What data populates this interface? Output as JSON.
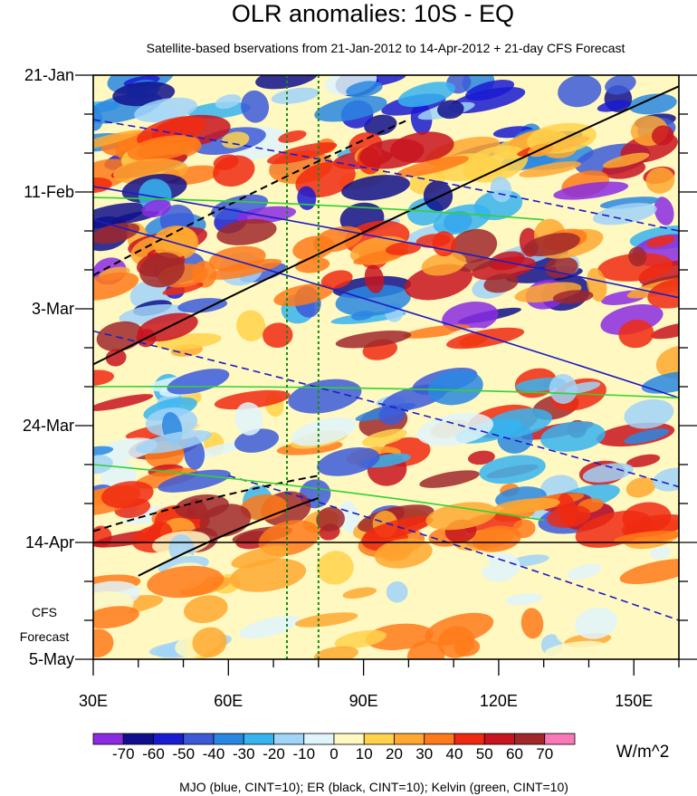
{
  "chart_data": {
    "type": "heatmap",
    "title": "OLR anomalies: 10S - EQ",
    "subtitle": "Satellite-based bservations from 21-Jan-2012 to 14-Apr-2012 + 21-day CFS Forecast",
    "xlabel": "",
    "ylabel": "",
    "x_ticks": [
      "30E",
      "60E",
      "90E",
      "120E",
      "150E"
    ],
    "x_tick_values": [
      30,
      60,
      90,
      120,
      150
    ],
    "xlim": [
      30,
      160
    ],
    "y_ticks": [
      "21-Jan",
      "11-Feb",
      "3-Mar",
      "24-Mar",
      "14-Apr",
      "5-May"
    ],
    "y_tick_days": [
      0,
      21,
      42,
      63,
      84,
      105
    ],
    "ylim_days": [
      0,
      105
    ],
    "forecast_start": "14-Apr",
    "forecast_start_day": 84,
    "forecast_label": [
      "CFS",
      "Forecast"
    ],
    "dotted_lines_lon": [
      73,
      80
    ],
    "colorbar": {
      "labels": [
        "-70",
        "-60",
        "-50",
        "-40",
        "-30",
        "-20",
        "-10",
        "0",
        "10",
        "20",
        "30",
        "40",
        "50",
        "60",
        "70"
      ],
      "colors": [
        "#8a2be2",
        "#10108c",
        "#1a1ad2",
        "#3c5ad8",
        "#2a87e0",
        "#36b4f0",
        "#a0d4f8",
        "#e0f4fc",
        "#fff8c0",
        "#ffd24a",
        "#ffa830",
        "#ff7a1a",
        "#f02a12",
        "#c8141e",
        "#a0282a",
        "#f878b8"
      ],
      "units": "W/m^2"
    },
    "footer": "MJO (blue, CINT=10); ER (black, CINT=10); Kelvin (green, CINT=10)"
  }
}
